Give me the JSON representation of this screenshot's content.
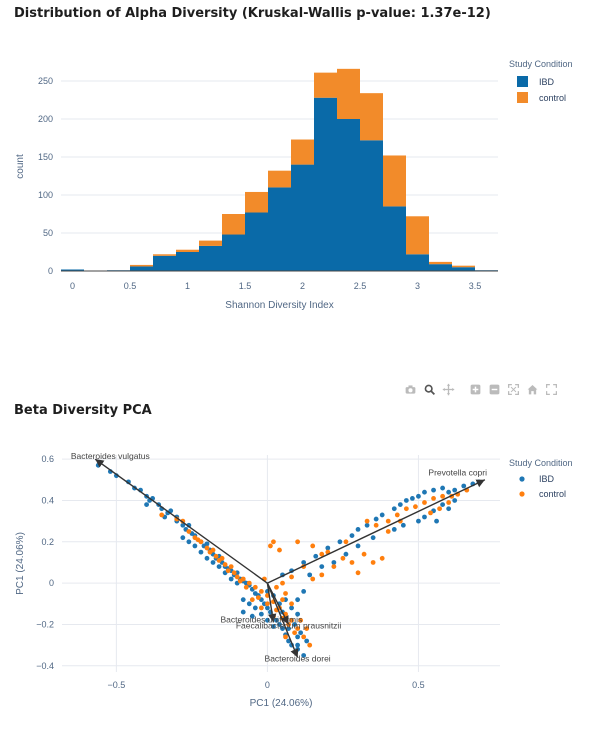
{
  "colors": {
    "ibd": "#1f77b4",
    "control": "#ff7f0e",
    "ibd_bar": "#0a6aa8",
    "control_bar": "#f28b2a",
    "arrow": "#333333"
  },
  "modebar": {
    "icons": [
      "camera-icon",
      "zoom-icon",
      "pan-icon",
      "zoom-in-icon",
      "zoom-out-icon",
      "autoscale-icon",
      "home-icon",
      "fullscreen-icon"
    ]
  },
  "chart_data": [
    {
      "type": "bar",
      "stacked": true,
      "title": "Distribution of Alpha Diversity (Kruskal-Wallis p-value: 1.37e-12)",
      "xlabel": "Shannon Diversity Index",
      "ylabel": "count",
      "legend_title": "Study Condition",
      "legend_position": "top-right",
      "xlim": [
        -0.1,
        3.7
      ],
      "ylim": [
        0,
        275
      ],
      "x_ticks": [
        0,
        0.5,
        1,
        1.5,
        2,
        2.5,
        3,
        3.5
      ],
      "y_ticks": [
        0,
        50,
        100,
        150,
        200,
        250
      ],
      "bin_width": 0.2,
      "bin_starts": [
        -0.1,
        0.1,
        0.3,
        0.5,
        0.7,
        0.9,
        1.1,
        1.3,
        1.5,
        1.7,
        1.9,
        2.1,
        2.3,
        2.5,
        2.7,
        2.9,
        3.1,
        3.3,
        3.5
      ],
      "series": [
        {
          "name": "IBD",
          "values": [
            2,
            0,
            1,
            6,
            20,
            25,
            33,
            48,
            77,
            110,
            140,
            228,
            200,
            172,
            85,
            22,
            9,
            5,
            1
          ]
        },
        {
          "name": "control",
          "values": [
            0,
            0,
            0,
            2,
            2,
            3,
            7,
            27,
            27,
            22,
            33,
            33,
            66,
            62,
            67,
            50,
            3,
            2,
            0
          ]
        }
      ]
    },
    {
      "type": "scatter",
      "title": "Beta Diversity PCA",
      "xlabel": "PC1 (24.06%)",
      "ylabel": "PC1 (24.06%)",
      "legend_title": "Study Condition",
      "legend_position": "top-right",
      "xlim": [
        -0.68,
        0.77
      ],
      "ylim": [
        -0.43,
        0.62
      ],
      "x_ticks": [
        -0.5,
        0,
        0.5
      ],
      "x_tick_labels": [
        "−0.5",
        "0",
        "0.5"
      ],
      "y_ticks": [
        -0.4,
        -0.2,
        0,
        0.2,
        0.4,
        0.6
      ],
      "y_tick_labels": [
        "−0.4",
        "−0.2",
        "0",
        "0.2",
        "0.4",
        "0.6"
      ],
      "series": [
        {
          "name": "IBD",
          "points": [
            [
              -0.56,
              0.57
            ],
            [
              -0.52,
              0.54
            ],
            [
              -0.5,
              0.52
            ],
            [
              -0.46,
              0.49
            ],
            [
              -0.44,
              0.46
            ],
            [
              -0.42,
              0.45
            ],
            [
              -0.4,
              0.42
            ],
            [
              -0.39,
              0.4
            ],
            [
              -0.38,
              0.41
            ],
            [
              -0.36,
              0.38
            ],
            [
              -0.35,
              0.36
            ],
            [
              -0.33,
              0.34
            ],
            [
              -0.32,
              0.35
            ],
            [
              -0.3,
              0.32
            ],
            [
              -0.3,
              0.3
            ],
            [
              -0.28,
              0.28
            ],
            [
              -0.27,
              0.26
            ],
            [
              -0.26,
              0.28
            ],
            [
              -0.25,
              0.24
            ],
            [
              -0.24,
              0.23
            ],
            [
              -0.22,
              0.2
            ],
            [
              -0.21,
              0.18
            ],
            [
              -0.2,
              0.19
            ],
            [
              -0.19,
              0.16
            ],
            [
              -0.18,
              0.14
            ],
            [
              -0.17,
              0.12
            ],
            [
              -0.16,
              0.13
            ],
            [
              -0.15,
              0.1
            ],
            [
              -0.14,
              0.08
            ],
            [
              -0.13,
              0.07
            ],
            [
              -0.12,
              0.06
            ],
            [
              -0.11,
              0.04
            ],
            [
              -0.1,
              0.05
            ],
            [
              -0.09,
              0.02
            ],
            [
              -0.08,
              0.01
            ],
            [
              -0.07,
              0.0
            ],
            [
              -0.06,
              -0.01
            ],
            [
              -0.05,
              -0.03
            ],
            [
              -0.04,
              -0.05
            ],
            [
              -0.03,
              -0.06
            ],
            [
              -0.02,
              -0.08
            ],
            [
              -0.01,
              -0.1
            ],
            [
              0.0,
              -0.12
            ],
            [
              0.01,
              -0.14
            ],
            [
              0.02,
              -0.16
            ],
            [
              0.03,
              -0.18
            ],
            [
              0.04,
              -0.2
            ],
            [
              0.05,
              -0.22
            ],
            [
              0.06,
              -0.25
            ],
            [
              0.07,
              -0.28
            ],
            [
              0.08,
              -0.3
            ],
            [
              0.1,
              -0.32
            ],
            [
              0.12,
              -0.35
            ],
            [
              -0.04,
              -0.12
            ],
            [
              -0.02,
              -0.15
            ],
            [
              0.0,
              -0.18
            ],
            [
              0.02,
              -0.21
            ],
            [
              -0.06,
              -0.1
            ],
            [
              -0.08,
              -0.08
            ],
            [
              0.04,
              -0.1
            ],
            [
              0.06,
              -0.08
            ],
            [
              0.08,
              -0.12
            ],
            [
              0.1,
              -0.15
            ],
            [
              0.05,
              -0.14
            ],
            [
              0.09,
              -0.2
            ],
            [
              0.11,
              -0.24
            ],
            [
              0.02,
              -0.06
            ],
            [
              0.0,
              -0.04
            ],
            [
              -0.1,
              0.0
            ],
            [
              -0.12,
              0.02
            ],
            [
              0.05,
              0.04
            ],
            [
              0.08,
              0.06
            ],
            [
              0.12,
              0.1
            ],
            [
              0.16,
              0.13
            ],
            [
              0.2,
              0.17
            ],
            [
              0.24,
              0.2
            ],
            [
              0.28,
              0.23
            ],
            [
              0.3,
              0.26
            ],
            [
              0.33,
              0.28
            ],
            [
              0.36,
              0.31
            ],
            [
              0.38,
              0.33
            ],
            [
              0.42,
              0.36
            ],
            [
              0.44,
              0.38
            ],
            [
              0.46,
              0.4
            ],
            [
              0.48,
              0.41
            ],
            [
              0.5,
              0.42
            ],
            [
              0.52,
              0.44
            ],
            [
              0.55,
              0.45
            ],
            [
              0.58,
              0.46
            ],
            [
              0.6,
              0.44
            ],
            [
              0.62,
              0.45
            ],
            [
              0.65,
              0.47
            ],
            [
              0.68,
              0.48
            ],
            [
              0.7,
              0.49
            ],
            [
              0.5,
              0.3
            ],
            [
              0.52,
              0.32
            ],
            [
              0.55,
              0.35
            ],
            [
              0.58,
              0.38
            ],
            [
              0.6,
              0.36
            ],
            [
              0.62,
              0.4
            ],
            [
              0.45,
              0.28
            ],
            [
              0.42,
              0.26
            ],
            [
              0.56,
              0.3
            ],
            [
              0.35,
              0.22
            ],
            [
              0.3,
              0.18
            ],
            [
              0.22,
              0.1
            ],
            [
              0.18,
              0.08
            ],
            [
              0.14,
              0.04
            ],
            [
              0.26,
              0.14
            ],
            [
              -0.4,
              0.38
            ],
            [
              -0.34,
              0.32
            ],
            [
              -0.28,
              0.22
            ],
            [
              -0.24,
              0.18
            ],
            [
              -0.22,
              0.15
            ],
            [
              -0.18,
              0.1
            ],
            [
              -0.14,
              0.05
            ],
            [
              -0.2,
              0.12
            ],
            [
              -0.26,
              0.2
            ],
            [
              -0.16,
              0.08
            ],
            [
              0.13,
              -0.28
            ],
            [
              0.1,
              -0.26
            ],
            [
              0.07,
              -0.22
            ],
            [
              -0.05,
              -0.16
            ],
            [
              -0.08,
              -0.14
            ],
            [
              0.1,
              -0.08
            ],
            [
              0.12,
              -0.04
            ],
            [
              0.1,
              -0.3
            ]
          ]
        },
        {
          "name": "control",
          "points": [
            [
              -0.35,
              0.33
            ],
            [
              -0.3,
              0.31
            ],
            [
              -0.28,
              0.3
            ],
            [
              -0.26,
              0.25
            ],
            [
              -0.23,
              0.21
            ],
            [
              -0.2,
              0.17
            ],
            [
              -0.18,
              0.16
            ],
            [
              -0.16,
              0.11
            ],
            [
              -0.14,
              0.09
            ],
            [
              -0.12,
              0.08
            ],
            [
              -0.1,
              0.03
            ],
            [
              -0.08,
              0.02
            ],
            [
              -0.06,
              0.0
            ],
            [
              -0.04,
              -0.02
            ],
            [
              -0.02,
              -0.04
            ],
            [
              0.0,
              -0.06
            ],
            [
              0.02,
              -0.09
            ],
            [
              0.04,
              -0.12
            ],
            [
              0.06,
              -0.15
            ],
            [
              0.08,
              -0.18
            ],
            [
              0.1,
              -0.22
            ],
            [
              0.12,
              -0.26
            ],
            [
              0.14,
              -0.3
            ],
            [
              -0.22,
              0.2
            ],
            [
              -0.19,
              0.15
            ],
            [
              -0.15,
              0.12
            ],
            [
              -0.13,
              0.06
            ],
            [
              -0.11,
              0.05
            ],
            [
              -0.09,
              0.01
            ],
            [
              -0.07,
              -0.02
            ],
            [
              -0.03,
              -0.07
            ],
            [
              0.0,
              -0.1
            ],
            [
              0.03,
              -0.13
            ],
            [
              0.05,
              -0.17
            ],
            [
              0.07,
              -0.2
            ],
            [
              0.09,
              -0.24
            ],
            [
              0.01,
              0.18
            ],
            [
              0.02,
              0.2
            ],
            [
              0.1,
              0.2
            ],
            [
              0.15,
              0.18
            ],
            [
              0.2,
              0.15
            ],
            [
              0.22,
              0.08
            ],
            [
              0.25,
              0.12
            ],
            [
              0.28,
              0.1
            ],
            [
              0.32,
              0.14
            ],
            [
              0.35,
              0.1
            ],
            [
              0.38,
              0.12
            ],
            [
              0.3,
              0.05
            ],
            [
              0.33,
              0.3
            ],
            [
              0.36,
              0.28
            ],
            [
              0.4,
              0.3
            ],
            [
              0.43,
              0.33
            ],
            [
              0.46,
              0.36
            ],
            [
              0.49,
              0.37
            ],
            [
              0.52,
              0.39
            ],
            [
              0.55,
              0.41
            ],
            [
              0.58,
              0.42
            ],
            [
              0.61,
              0.42
            ],
            [
              0.63,
              0.43
            ],
            [
              0.66,
              0.45
            ],
            [
              0.54,
              0.34
            ],
            [
              0.57,
              0.36
            ],
            [
              0.6,
              0.39
            ],
            [
              0.44,
              0.3
            ],
            [
              0.4,
              0.25
            ],
            [
              0.26,
              0.2
            ],
            [
              0.18,
              0.14
            ],
            [
              0.12,
              0.08
            ],
            [
              0.08,
              0.03
            ],
            [
              0.05,
              0.0
            ],
            [
              0.05,
              -0.08
            ],
            [
              0.08,
              -0.1
            ],
            [
              0.03,
              -0.02
            ],
            [
              -0.05,
              -0.08
            ],
            [
              0.02,
              -0.16
            ],
            [
              -0.02,
              -0.12
            ],
            [
              0.11,
              -0.18
            ],
            [
              0.06,
              -0.05
            ],
            [
              -0.01,
              0.02
            ],
            [
              0.15,
              0.02
            ],
            [
              0.18,
              0.04
            ],
            [
              0.04,
              0.16
            ],
            [
              -0.24,
              0.22
            ],
            [
              -0.17,
              0.13
            ],
            [
              0.06,
              -0.26
            ],
            [
              0.13,
              -0.22
            ]
          ]
        }
      ],
      "loadings": [
        {
          "label": "Bacteroides vulgatus",
          "x": -0.57,
          "y": 0.6,
          "label_x": -0.52,
          "label_y": 0.6
        },
        {
          "label": "Prevotella copri",
          "x": 0.72,
          "y": 0.5,
          "label_x": 0.63,
          "label_y": 0.52
        },
        {
          "label": "Bacteroides uniformis",
          "x": 0.02,
          "y": -0.19,
          "label_x": -0.02,
          "label_y": -0.19
        },
        {
          "label": "Faecalibacterium prausnitzii",
          "x": 0.07,
          "y": -0.2,
          "label_x": 0.07,
          "label_y": -0.22
        },
        {
          "label": "Bacteroides dorei",
          "x": 0.1,
          "y": -0.36,
          "label_x": 0.1,
          "label_y": -0.38
        }
      ]
    }
  ]
}
